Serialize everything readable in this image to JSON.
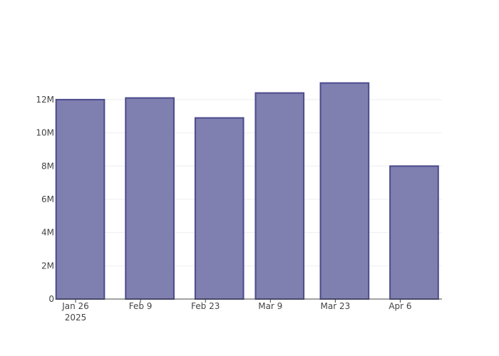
{
  "chart_data": {
    "type": "bar",
    "x": [
      "2025-01-27",
      "2025-02-11",
      "2025-02-26",
      "2025-03-11",
      "2025-03-25",
      "2025-04-09"
    ],
    "values": [
      12000000,
      12100000,
      10900000,
      12400000,
      13000000,
      8000000
    ],
    "color": "#7f7fb0",
    "line_color": "#4b4b8c",
    "xlim": [
      "2025-01-22",
      "2025-04-15"
    ],
    "xticks": [
      {
        "value": "2025-01-26",
        "label": "Jan 26\n2025"
      },
      {
        "value": "2025-02-09",
        "label": "Feb 9"
      },
      {
        "value": "2025-02-23",
        "label": "Feb 23"
      },
      {
        "value": "2025-03-09",
        "label": "Mar 9"
      },
      {
        "value": "2025-03-23",
        "label": "Mar 23"
      },
      {
        "value": "2025-04-06",
        "label": "Apr 6"
      }
    ],
    "ylim": [
      0,
      13710000
    ],
    "yticks": [
      0,
      {
        "value": 2000000,
        "label": "2M"
      },
      {
        "value": 4000000,
        "label": "4M"
      },
      {
        "value": 6000000,
        "label": "6M"
      },
      {
        "value": 8000000,
        "label": "8M"
      },
      {
        "value": 10000000,
        "label": "10M"
      },
      {
        "value": 12000000,
        "label": "12M"
      }
    ],
    "grid": true
  }
}
